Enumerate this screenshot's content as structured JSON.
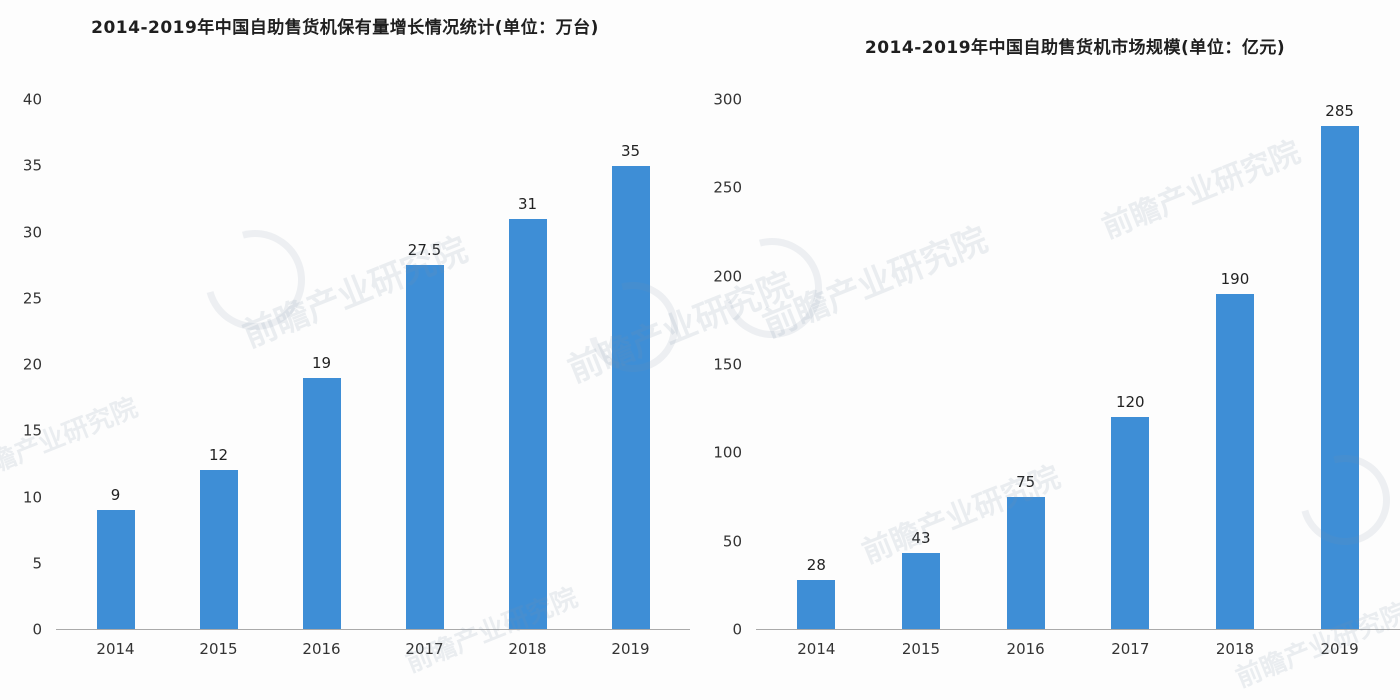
{
  "watermark": {
    "text": "前瞻产业研究院"
  },
  "chart_data": [
    {
      "type": "bar",
      "title": "2014-2019年中国自助售货机保有量增长情况统计(单位：万台)",
      "categories": [
        "2014",
        "2015",
        "2016",
        "2017",
        "2018",
        "2019"
      ],
      "values": [
        9,
        12,
        19,
        27.5,
        31,
        35
      ],
      "value_labels": [
        "9",
        "12",
        "19",
        "27.5",
        "31",
        "35"
      ],
      "ylabel": "",
      "xlabel": "",
      "ylim": [
        0,
        40
      ],
      "ytick_step": 5,
      "bar_color": "#3e8ed6",
      "grid": false,
      "legend": "none"
    },
    {
      "type": "bar",
      "title": "2014-2019年中国自助售货机市场规模(单位：亿元)",
      "categories": [
        "2014",
        "2015",
        "2016",
        "2017",
        "2018",
        "2019"
      ],
      "values": [
        28,
        43,
        75,
        120,
        190,
        285
      ],
      "value_labels": [
        "28",
        "43",
        "75",
        "120",
        "190",
        "285"
      ],
      "ylabel": "",
      "xlabel": "",
      "ylim": [
        0,
        300
      ],
      "ytick_step": 50,
      "bar_color": "#3e8ed6",
      "grid": false,
      "legend": "none"
    }
  ]
}
